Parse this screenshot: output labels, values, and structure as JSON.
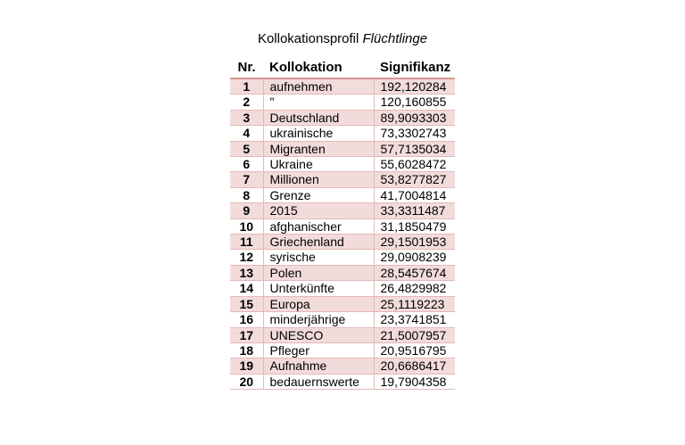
{
  "title": {
    "prefix": "Kollokationsprofil",
    "term": "Flüchtlinge"
  },
  "table": {
    "columns": [
      "Nr.",
      "Kollokation",
      "Signifikanz"
    ],
    "rows": [
      {
        "nr": "1",
        "kollokation": "aufnehmen",
        "signifikanz": "192,120284"
      },
      {
        "nr": "2",
        "kollokation": "\"",
        "signifikanz": "120,160855"
      },
      {
        "nr": "3",
        "kollokation": "Deutschland",
        "signifikanz": "89,9093303"
      },
      {
        "nr": "4",
        "kollokation": "ukrainische",
        "signifikanz": "73,3302743"
      },
      {
        "nr": "5",
        "kollokation": "Migranten",
        "signifikanz": "57,7135034"
      },
      {
        "nr": "6",
        "kollokation": "Ukraine",
        "signifikanz": "55,6028472"
      },
      {
        "nr": "7",
        "kollokation": "Millionen",
        "signifikanz": "53,8277827"
      },
      {
        "nr": "8",
        "kollokation": "Grenze",
        "signifikanz": "41,7004814"
      },
      {
        "nr": "9",
        "kollokation": "2015",
        "signifikanz": "33,3311487"
      },
      {
        "nr": "10",
        "kollokation": "afghanischer",
        "signifikanz": "31,1850479"
      },
      {
        "nr": "11",
        "kollokation": "Griechenland",
        "signifikanz": "29,1501953"
      },
      {
        "nr": "12",
        "kollokation": "syrische",
        "signifikanz": "29,0908239"
      },
      {
        "nr": "13",
        "kollokation": "Polen",
        "signifikanz": "28,5457674"
      },
      {
        "nr": "14",
        "kollokation": "Unterkünfte",
        "signifikanz": "26,4829982"
      },
      {
        "nr": "15",
        "kollokation": "Europa",
        "signifikanz": "25,1119223"
      },
      {
        "nr": "16",
        "kollokation": "minderjährige",
        "signifikanz": "23,3741851"
      },
      {
        "nr": "17",
        "kollokation": "UNESCO",
        "signifikanz": "21,5007957"
      },
      {
        "nr": "18",
        "kollokation": "Pfleger",
        "signifikanz": "20,9516795"
      },
      {
        "nr": "19",
        "kollokation": "Aufnahme",
        "signifikanz": "20,6686417"
      },
      {
        "nr": "20",
        "kollokation": "bedauernswerte",
        "signifikanz": "19,7904358"
      }
    ]
  },
  "colors": {
    "row_band": "#f2dcdb",
    "border": "#e5b8b7",
    "border_strong": "#d99694",
    "text": "#000000",
    "background": "#ffffff"
  }
}
